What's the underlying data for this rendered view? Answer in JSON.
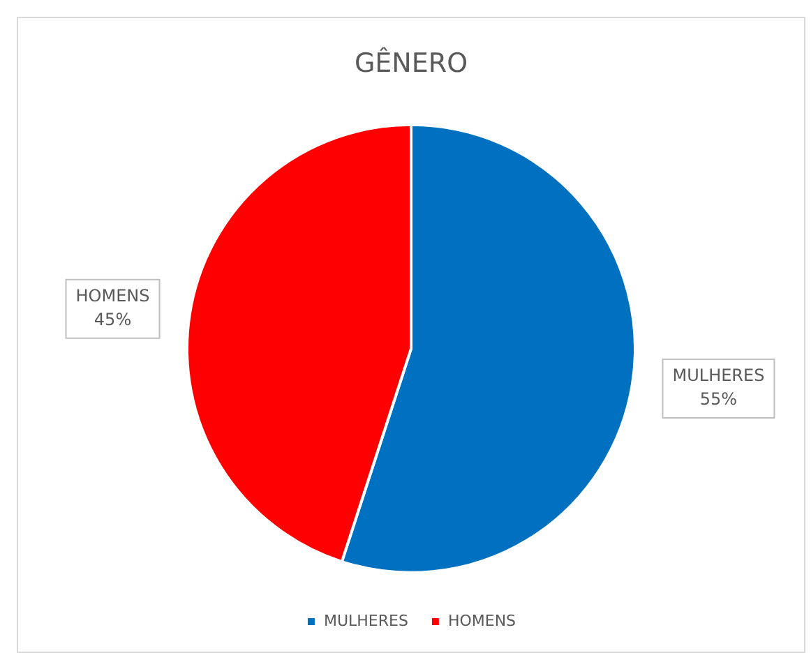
{
  "chart_data": {
    "type": "pie",
    "title": "GÊNERO",
    "categories": [
      "MULHERES",
      "HOMENS"
    ],
    "values": [
      55,
      45
    ],
    "colors": [
      "#0070c0",
      "#ff0000"
    ],
    "value_labels": [
      "55%",
      "45%"
    ],
    "legend": "bottom"
  }
}
